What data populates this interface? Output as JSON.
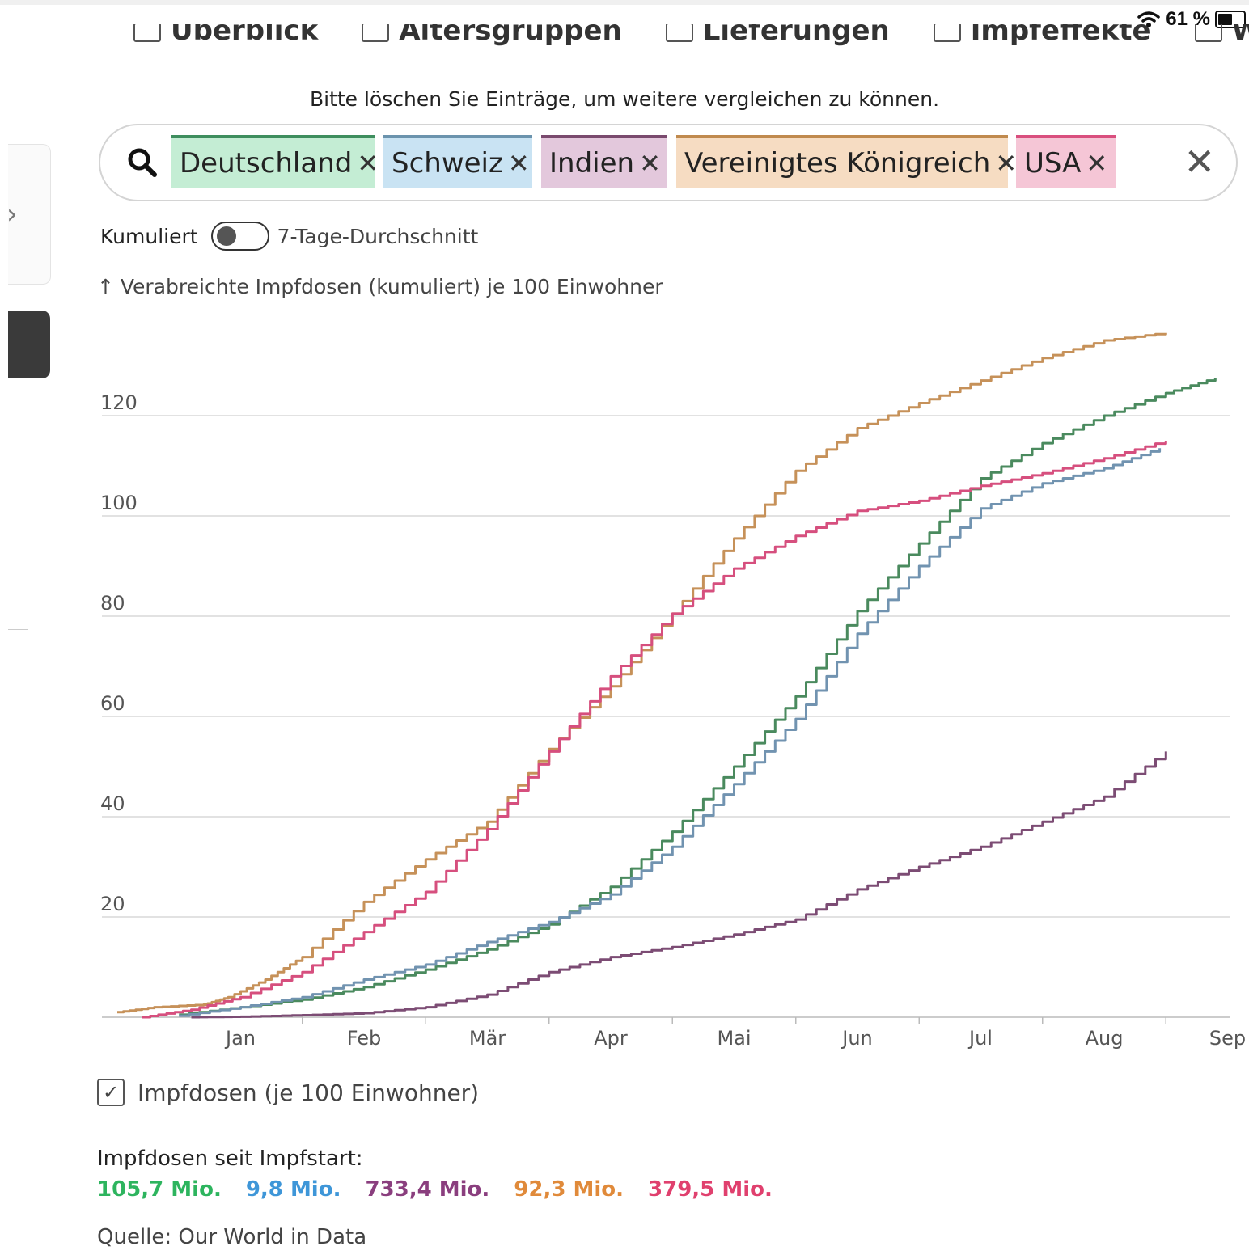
{
  "status": {
    "battery": "61 %",
    "battery_level": 0.61
  },
  "nav": {
    "items": [
      "Überblick",
      "Altersgruppen",
      "Lieferungen",
      "Impfeffekte",
      "Weltweit"
    ]
  },
  "hint": "Bitte löschen Sie Einträge, um weitere vergleichen zu können.",
  "search": {
    "chips": [
      {
        "label": "Deutschland",
        "bg": "#c4edd4",
        "border": "#3e8e5e"
      },
      {
        "label": "Schweiz",
        "bg": "#c9e3f3",
        "border": "#6b93ad"
      },
      {
        "label": "Indien",
        "bg": "#e3c8dc",
        "border": "#7a4a6e"
      },
      {
        "label": "Vereinigtes Königreich",
        "bg": "#f6dcc2",
        "border": "#c08a4e"
      },
      {
        "label": "USA",
        "bg": "#f5c6d6",
        "border": "#d94f7e"
      }
    ]
  },
  "toggle": {
    "left_label": "Kumuliert",
    "right_label": "7-Tage-Durchschnitt"
  },
  "axis_title": "↑ Verabreichte Impfdosen (kumuliert) je 100 Einwohner",
  "chart_data": {
    "type": "line",
    "x_ticks": [
      "Jan",
      "Feb",
      "Mär",
      "Apr",
      "Mai",
      "Jun",
      "Jul",
      "Aug",
      "Sep"
    ],
    "y_ticks": [
      20,
      40,
      60,
      80,
      100,
      120
    ],
    "ylim": [
      0,
      140
    ],
    "grid": true,
    "series": [
      {
        "name": "Deutschland",
        "color": "#4a8a5e",
        "x": [
          0.5,
          1.0,
          1.5,
          2.0,
          2.5,
          3.0,
          3.5,
          4.0,
          4.5,
          5.0,
          5.5,
          6.0,
          6.5,
          7.0,
          7.5,
          8.0,
          8.5,
          8.9
        ],
        "y": [
          0.5,
          2.0,
          3.5,
          6.0,
          9.5,
          13.5,
          18.5,
          26.0,
          37.0,
          50.0,
          64.0,
          81.0,
          94.5,
          107.5,
          114.5,
          120.0,
          124.5,
          127.5
        ]
      },
      {
        "name": "Schweiz",
        "color": "#7193b0",
        "x": [
          0.5,
          1.0,
          1.5,
          2.0,
          2.5,
          3.0,
          3.5,
          4.0,
          4.5,
          5.0,
          5.5,
          6.0,
          6.5,
          7.0,
          7.5,
          8.0,
          8.45
        ],
        "y": [
          0.3,
          2.0,
          4.0,
          7.5,
          10.5,
          15.0,
          19.0,
          24.5,
          34.0,
          46.5,
          59.5,
          76.5,
          90.0,
          101.5,
          106.5,
          109.5,
          113.5
        ]
      },
      {
        "name": "Indien",
        "color": "#7c4c74",
        "x": [
          0.6,
          1.0,
          1.5,
          2.0,
          2.5,
          3.0,
          3.5,
          4.0,
          4.5,
          5.0,
          5.5,
          6.0,
          6.5,
          7.0,
          7.5,
          8.0,
          8.5
        ],
        "y": [
          0.0,
          0.1,
          0.4,
          0.8,
          2.0,
          4.5,
          9.0,
          12.0,
          14.0,
          16.5,
          19.5,
          25.5,
          30.0,
          34.0,
          39.0,
          44.0,
          53.0
        ]
      },
      {
        "name": "Vereinigtes Königreich",
        "color": "#c69159",
        "x": [
          0.0,
          0.3,
          0.7,
          0.9,
          1.2,
          1.5,
          2.0,
          2.5,
          3.0,
          3.5,
          4.0,
          4.5,
          5.0,
          5.5,
          6.0,
          6.5,
          7.0,
          7.5,
          8.0,
          8.5
        ],
        "y": [
          1.0,
          2.0,
          2.5,
          4.0,
          7.5,
          12.0,
          23.0,
          31.5,
          39.0,
          53.5,
          66.0,
          80.5,
          95.5,
          109.0,
          117.5,
          122.5,
          127.0,
          131.5,
          135.0,
          136.5
        ]
      },
      {
        "name": "USA",
        "color": "#d64f7e",
        "x": [
          0.2,
          0.6,
          1.0,
          1.5,
          2.0,
          2.5,
          3.0,
          3.5,
          4.0,
          4.5,
          5.0,
          5.5,
          6.0,
          6.5,
          7.0,
          7.5,
          8.0,
          8.5
        ],
        "y": [
          0.0,
          1.5,
          4.0,
          9.0,
          17.0,
          25.0,
          37.5,
          53.0,
          68.0,
          80.5,
          89.5,
          96.0,
          101.0,
          103.0,
          106.0,
          108.5,
          111.5,
          115.0
        ]
      }
    ]
  },
  "legend": {
    "checkbox_label": "Impfdosen (je 100 Einwohner)",
    "checked": true
  },
  "totals": {
    "title": "Impfdosen seit Impfstart:",
    "items": [
      {
        "value": "105,7 Mio.",
        "color": "#2db45e"
      },
      {
        "value": "9,8 Mio.",
        "color": "#3e96d8"
      },
      {
        "value": "733,4 Mio.",
        "color": "#8a3e7e"
      },
      {
        "value": "92,3 Mio.",
        "color": "#e08a3a"
      },
      {
        "value": "379,5 Mio.",
        "color": "#e0406e"
      }
    ]
  },
  "source": "Quelle: Our World in Data"
}
